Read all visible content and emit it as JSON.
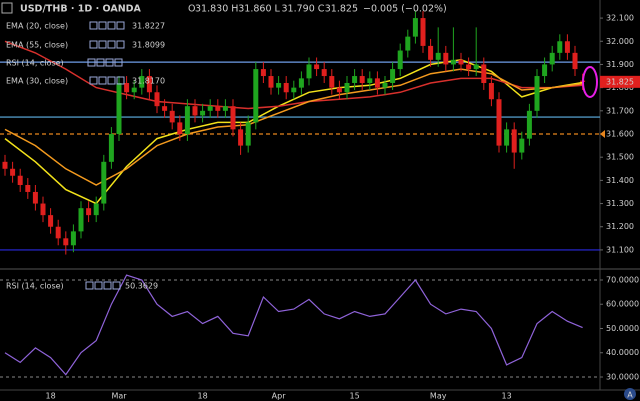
{
  "chart_data": {
    "type": "candlestick",
    "title": "USD/THB · 1D · OANDA",
    "ohlc_labels": [
      {
        "key": "O",
        "text": "31.830"
      },
      {
        "key": "H",
        "text": "31.860"
      },
      {
        "key": "L",
        "text": "31.790"
      },
      {
        "key": "C",
        "text": "31.825"
      }
    ],
    "change": "−0.005 (−0.02%)",
    "up_color": "#1fa51f",
    "down_color": "#e0201e",
    "categories": [
      null,
      null,
      null,
      null,
      null,
      null,
      "18",
      null,
      null,
      null,
      null,
      null,
      null,
      null,
      null,
      "Mar",
      null,
      null,
      null,
      null,
      null,
      null,
      null,
      null,
      null,
      null,
      "18",
      null,
      null,
      null,
      null,
      null,
      null,
      null,
      null,
      null,
      "Apr",
      null,
      null,
      null,
      null,
      null,
      null,
      null,
      null,
      null,
      "15",
      null,
      null,
      null,
      null,
      null,
      null,
      null,
      null,
      null,
      null,
      "May",
      null,
      null,
      null,
      null,
      null,
      null,
      null,
      null,
      "13",
      null,
      null,
      null,
      null,
      null,
      null,
      null,
      null,
      null,
      null
    ],
    "open": [
      31.48,
      31.45,
      31.42,
      31.38,
      31.35,
      31.3,
      31.25,
      31.2,
      31.15,
      31.12,
      31.18,
      31.28,
      31.25,
      31.3,
      31.48,
      31.6,
      31.82,
      31.78,
      31.8,
      31.85,
      31.78,
      31.72,
      31.7,
      31.65,
      31.6,
      31.72,
      31.68,
      31.7,
      31.72,
      31.7,
      31.72,
      31.62,
      31.55,
      31.65,
      31.88,
      31.85,
      31.8,
      31.82,
      31.78,
      31.8,
      31.84,
      31.9,
      31.88,
      31.85,
      31.8,
      31.78,
      31.82,
      31.85,
      31.82,
      31.84,
      31.8,
      31.82,
      31.88,
      31.96,
      32.02,
      32.1,
      31.98,
      31.92,
      31.95,
      31.9,
      31.92,
      31.9,
      31.88,
      31.9,
      31.82,
      31.75,
      31.55,
      31.62,
      31.52,
      31.58,
      31.7,
      31.85,
      31.9,
      31.95,
      32.0,
      31.95,
      31.83
    ],
    "high": [
      31.51,
      31.48,
      31.45,
      31.41,
      31.38,
      31.33,
      31.28,
      31.23,
      31.18,
      31.21,
      31.31,
      31.31,
      31.33,
      31.51,
      31.63,
      31.85,
      31.85,
      31.83,
      31.88,
      31.88,
      31.81,
      31.75,
      31.73,
      31.68,
      31.75,
      31.75,
      31.73,
      31.75,
      31.75,
      31.75,
      31.75,
      31.65,
      31.68,
      31.91,
      31.91,
      31.88,
      31.85,
      31.85,
      31.83,
      31.87,
      31.93,
      31.93,
      31.91,
      31.88,
      31.83,
      31.85,
      31.88,
      31.88,
      31.87,
      31.87,
      31.85,
      31.91,
      31.99,
      32.05,
      32.13,
      32.13,
      32.01,
      32.06,
      31.98,
      32.06,
      31.95,
      31.93,
      32.06,
      31.93,
      31.85,
      31.78,
      31.65,
      31.65,
      31.61,
      31.73,
      31.88,
      31.93,
      31.98,
      32.03,
      32.03,
      31.98,
      31.86
    ],
    "low": [
      31.42,
      31.39,
      31.35,
      31.32,
      31.27,
      31.22,
      31.17,
      31.12,
      31.08,
      31.09,
      31.15,
      31.22,
      31.22,
      31.27,
      31.45,
      31.57,
      31.75,
      31.75,
      31.77,
      31.75,
      31.69,
      31.67,
      31.62,
      31.57,
      31.57,
      31.65,
      31.65,
      31.67,
      31.67,
      31.67,
      31.59,
      31.51,
      31.52,
      31.62,
      31.82,
      31.77,
      31.77,
      31.75,
      31.75,
      31.77,
      31.81,
      31.85,
      31.82,
      31.77,
      31.75,
      31.75,
      31.79,
      31.79,
      31.79,
      31.77,
      31.77,
      31.79,
      31.85,
      31.93,
      31.99,
      31.95,
      31.89,
      31.89,
      31.87,
      31.87,
      31.87,
      31.85,
      31.85,
      31.79,
      31.72,
      31.52,
      31.52,
      31.45,
      31.49,
      31.55,
      31.67,
      31.82,
      31.87,
      31.92,
      31.92,
      31.85,
      31.79
    ],
    "close": [
      31.45,
      31.42,
      31.38,
      31.35,
      31.3,
      31.25,
      31.2,
      31.15,
      31.12,
      31.18,
      31.28,
      31.25,
      31.3,
      31.48,
      31.6,
      31.82,
      31.78,
      31.8,
      31.85,
      31.78,
      31.72,
      31.7,
      31.65,
      31.6,
      31.72,
      31.68,
      31.7,
      31.72,
      31.7,
      31.72,
      31.62,
      31.55,
      31.65,
      31.88,
      31.85,
      31.8,
      31.82,
      31.78,
      31.8,
      31.84,
      31.9,
      31.88,
      31.85,
      31.8,
      31.78,
      31.82,
      31.85,
      31.82,
      31.84,
      31.8,
      31.82,
      31.88,
      31.96,
      32.02,
      32.1,
      31.98,
      31.92,
      31.95,
      31.9,
      31.92,
      31.9,
      31.88,
      31.9,
      31.82,
      31.75,
      31.55,
      31.62,
      31.52,
      31.58,
      31.7,
      31.85,
      31.9,
      31.95,
      32.0,
      31.95,
      31.88,
      31.825
    ],
    "ylim": [
      31.022,
      32.178
    ],
    "yticks": [
      {
        "value": 31.1,
        "label": "31.100"
      },
      {
        "value": 31.2,
        "label": "31.200"
      },
      {
        "value": 31.3,
        "label": "31.300"
      },
      {
        "value": 31.4,
        "label": "31.400"
      },
      {
        "value": 31.5,
        "label": "31.500"
      },
      {
        "value": 31.6,
        "label": "31.600"
      },
      {
        "value": 31.7,
        "label": "31.700"
      },
      {
        "value": 31.8,
        "label": "31.800"
      },
      {
        "value": 31.9,
        "label": "31.900"
      },
      {
        "value": 32.0,
        "label": "32.000"
      },
      {
        "value": 32.1,
        "label": "32.100"
      }
    ],
    "lines": [
      {
        "name": "EMA (20, close)",
        "legend_value": "31.8227",
        "color": "#f2e21b",
        "x": [
          0,
          4,
          8,
          12,
          16,
          20,
          24,
          28,
          32,
          36,
          40,
          44,
          48,
          52,
          56,
          60,
          64,
          68,
          72,
          76
        ],
        "values": [
          31.58,
          31.48,
          31.36,
          31.3,
          31.46,
          31.58,
          31.62,
          31.65,
          31.65,
          31.72,
          31.78,
          31.8,
          31.81,
          31.84,
          31.9,
          31.92,
          31.87,
          31.76,
          31.8,
          31.822
        ]
      },
      {
        "name": "EMA (55, close)",
        "legend_value": "31.8099",
        "color": "#d8302c",
        "x": [
          0,
          4,
          8,
          12,
          16,
          20,
          24,
          28,
          32,
          36,
          40,
          44,
          48,
          52,
          56,
          60,
          64,
          68,
          72,
          76
        ],
        "values": [
          32.0,
          31.95,
          31.88,
          31.8,
          31.77,
          31.74,
          31.73,
          31.72,
          31.71,
          31.72,
          31.74,
          31.75,
          31.76,
          31.78,
          31.82,
          31.84,
          31.84,
          31.8,
          31.8,
          31.81
        ]
      },
      {
        "name": "EMA (30, close)",
        "legend_value": "31.8170",
        "color": "#f39a1e",
        "x": [
          0,
          4,
          8,
          12,
          16,
          20,
          24,
          28,
          32,
          36,
          40,
          44,
          48,
          52,
          56,
          60,
          64,
          68,
          72,
          76
        ],
        "values": [
          31.62,
          31.55,
          31.45,
          31.38,
          31.45,
          31.55,
          31.6,
          31.63,
          31.64,
          31.69,
          31.74,
          31.77,
          31.79,
          31.81,
          31.86,
          31.88,
          31.86,
          31.79,
          31.8,
          31.817
        ]
      }
    ],
    "hlines": [
      {
        "value": 31.91,
        "color": "#6f9ee8",
        "dashed": false
      },
      {
        "value": 31.673,
        "color": "#5fb3e8",
        "dashed": false
      },
      {
        "value": 31.6,
        "color": "#e8861e",
        "dashed": true
      },
      {
        "value": 31.1,
        "color": "#2a2ae0",
        "dashed": false
      }
    ],
    "rsi": {
      "name": "RSI (14, close)",
      "legend_value": "50.3629",
      "color": "#8f63d9",
      "x": [
        0,
        2,
        4,
        6,
        8,
        10,
        12,
        14,
        16,
        18,
        20,
        22,
        24,
        26,
        28,
        30,
        32,
        34,
        36,
        38,
        40,
        42,
        44,
        46,
        48,
        50,
        52,
        54,
        56,
        58,
        60,
        62,
        64,
        66,
        68,
        70,
        72,
        74,
        76
      ],
      "values": [
        40,
        36,
        42,
        38,
        31,
        40,
        45,
        60,
        72,
        70,
        60,
        55,
        57,
        52,
        55,
        48,
        47,
        63,
        57,
        58,
        62,
        56,
        54,
        57,
        55,
        56,
        63,
        70,
        60,
        56,
        58,
        57,
        50,
        35,
        38,
        52,
        57,
        53,
        50.36
      ],
      "ylim": [
        24.64,
        74.12
      ],
      "yticks": [
        {
          "value": 30,
          "label": "30.0000"
        },
        {
          "value": 40,
          "label": "40.0000"
        },
        {
          "value": 50,
          "label": "50.0000"
        },
        {
          "value": 60,
          "label": "60.0000"
        },
        {
          "value": 70,
          "label": "70.0000"
        }
      ],
      "bands": [
        70,
        30
      ]
    }
  }
}
